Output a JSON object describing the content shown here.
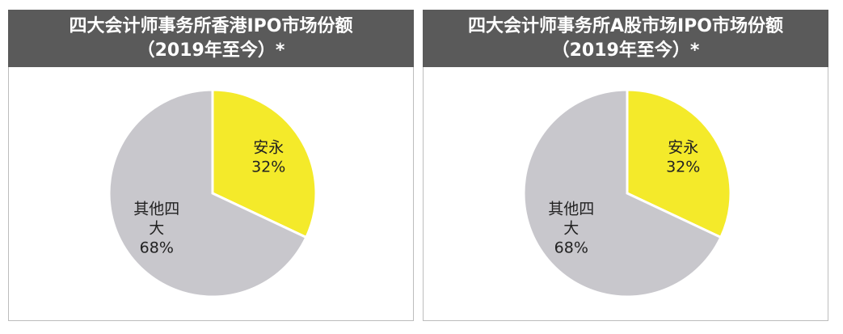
{
  "chart_data": [
    {
      "type": "pie",
      "title_line1": "四大会计师事务所香港IPO市场份额",
      "title_line2": "（2019年至今）*",
      "slices": [
        {
          "label_lines": [
            "安永"
          ],
          "value": 32,
          "value_label": "32%",
          "color": "#f4ea2a"
        },
        {
          "label_lines": [
            "其他四",
            "大"
          ],
          "value": 68,
          "value_label": "68%",
          "color": "#c8c7cc"
        }
      ]
    },
    {
      "type": "pie",
      "title_line1": "四大会计师事务所A股市场IPO市场份额",
      "title_line2": "（2019年至今）*",
      "slices": [
        {
          "label_lines": [
            "安永"
          ],
          "value": 32,
          "value_label": "32%",
          "color": "#f4ea2a"
        },
        {
          "label_lines": [
            "其他四",
            "大"
          ],
          "value": 68,
          "value_label": "68%",
          "color": "#c8c7cc"
        }
      ]
    }
  ]
}
